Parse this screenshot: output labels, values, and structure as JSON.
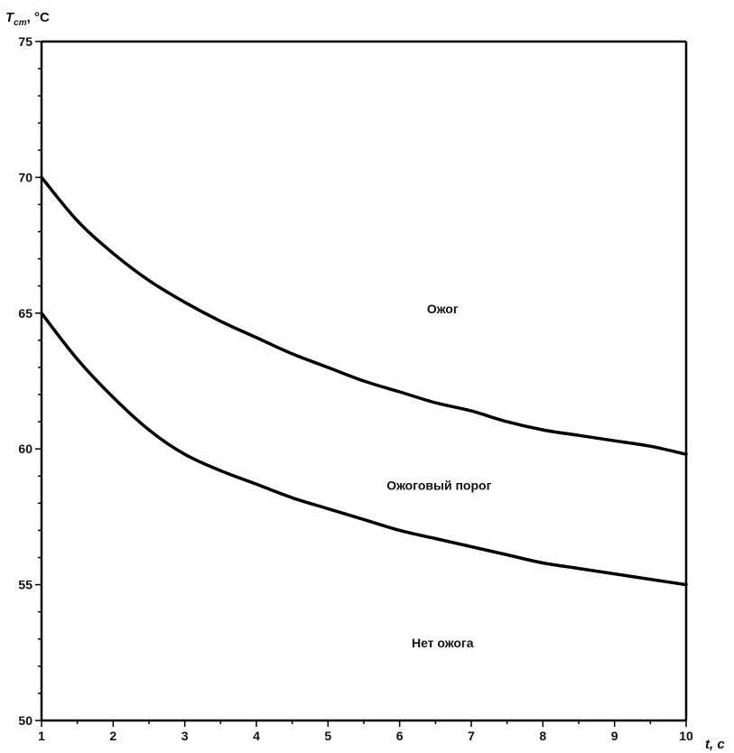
{
  "chart_data": {
    "type": "line",
    "ylabel": "T",
    "ylabel_sub": "ст",
    "ylabel_unit": ", °C",
    "xlabel": "t, с",
    "xlim": [
      1,
      10
    ],
    "ylim": [
      50,
      75
    ],
    "x_ticks": [
      1,
      2,
      3,
      4,
      5,
      6,
      7,
      8,
      9,
      10
    ],
    "y_ticks": [
      50,
      55,
      60,
      65,
      70,
      75
    ],
    "x_tick_labels": [
      "1",
      "2",
      "3",
      "4",
      "5",
      "6",
      "7",
      "8",
      "9",
      "10"
    ],
    "y_tick_labels": [
      "50",
      "55",
      "60",
      "65",
      "70",
      "75"
    ],
    "grid": false,
    "series": [
      {
        "x": [
          1,
          1.5,
          2,
          2.5,
          3,
          3.5,
          4,
          4.5,
          5,
          5.5,
          6,
          6.5,
          7,
          7.5,
          8,
          8.5,
          9,
          9.5,
          10
        ],
        "values": [
          70.0,
          68.4,
          67.2,
          66.2,
          65.4,
          64.7,
          64.1,
          63.5,
          63.0,
          62.5,
          62.1,
          61.7,
          61.4,
          61.0,
          60.7,
          60.5,
          60.3,
          60.1,
          59.8
        ]
      },
      {
        "x": [
          1,
          1.5,
          2,
          2.5,
          3,
          3.5,
          4,
          4.5,
          5,
          5.5,
          6,
          6.5,
          7,
          7.5,
          8,
          8.5,
          9,
          9.5,
          10
        ],
        "values": [
          65.0,
          63.3,
          61.9,
          60.7,
          59.8,
          59.2,
          58.7,
          58.2,
          57.8,
          57.4,
          57.0,
          56.7,
          56.4,
          56.1,
          55.8,
          55.6,
          55.4,
          55.2,
          55.0
        ]
      }
    ],
    "annotations": [
      {
        "text": "Ожог",
        "x": 6.6,
        "y": 65.0
      },
      {
        "text": "Ожоговый порог",
        "x": 6.55,
        "y": 58.5
      },
      {
        "text": "Нет ожога",
        "x": 6.6,
        "y": 52.7
      }
    ]
  }
}
